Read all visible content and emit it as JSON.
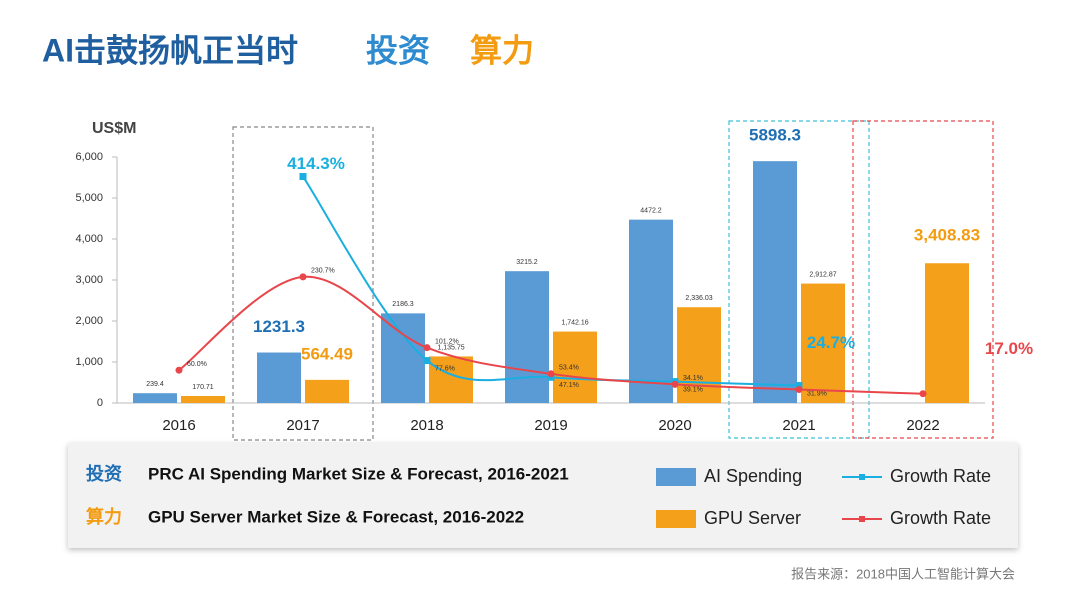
{
  "title": "AI击鼓扬帆正当时",
  "title_tags": [
    "投资",
    "算力"
  ],
  "source": "报告来源：2018中国人工智能计算大会",
  "chart_data": {
    "type": "bar_line",
    "y_label": "US$M",
    "categories": [
      "2016",
      "2017",
      "2018",
      "2019",
      "2020",
      "2021",
      "2022"
    ],
    "ylim": [
      0,
      6000
    ],
    "yticks": [
      0,
      {
        "value": 1000,
        "label": "1,000"
      },
      {
        "value": 2000,
        "label": "2,000"
      },
      {
        "value": 3000,
        "label": "3,000"
      },
      {
        "value": 4000,
        "label": "4,000"
      },
      {
        "value": 5000,
        "label": "5,000"
      },
      {
        "value": 6000,
        "label": "6,000"
      }
    ],
    "y2lim": [
      0,
      450
    ],
    "series": [
      {
        "name": "AI Spending",
        "type": "bar",
        "color": "#5b9bd5",
        "values": [
          239.4,
          1231.3,
          2186.3,
          3215.2,
          4472.2,
          5898.3,
          null
        ]
      },
      {
        "name": "GPU Server",
        "type": "bar",
        "color": "#f5a01a",
        "values": [
          170.71,
          564.49,
          1135.75,
          1742.16,
          2336.03,
          2912.87,
          3408.83
        ],
        "value_labels": [
          "170.71",
          "564.49",
          "1,135.75",
          "1,742.16",
          "2,336.03",
          "2,912.87",
          "3,408.83"
        ]
      },
      {
        "name": "Growth Rate",
        "type": "line",
        "axis": "y2",
        "color": "#1aafe0",
        "values": [
          null,
          414.3,
          77.6,
          47.1,
          39.1,
          31.9,
          null
        ],
        "value_labels": [
          null,
          "414.3%",
          "77.6%",
          "47.1%",
          "39.1%",
          "31.9%",
          null
        ]
      },
      {
        "name": "Growth Rate",
        "type": "line",
        "axis": "y2",
        "color": "#e8464a",
        "values": [
          60.0,
          230.7,
          101.2,
          53.4,
          34.1,
          24.7,
          17.0
        ],
        "value_labels": [
          "60.0%",
          "230.7%",
          "101.2%",
          "53.4%",
          "34.1%",
          "24.7%",
          "17.0%"
        ]
      }
    ],
    "legend_descriptions": [
      {
        "tag": "投资",
        "text": "PRC AI Spending Market Size & Forecast, 2016-2021"
      },
      {
        "tag": "算力",
        "text": "GPU Server Market Size & Forecast, 2016-2022"
      }
    ]
  }
}
